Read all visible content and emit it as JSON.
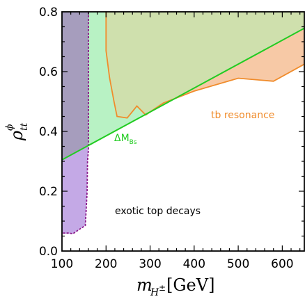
{
  "chart_data": {
    "type": "area",
    "title": "",
    "xlabel": "m_{H^±}[GeV]",
    "ylabel": "ρ^φ_{tt}",
    "xlim": [
      100,
      650
    ],
    "ylim": [
      0.0,
      0.8
    ],
    "x_ticks": [
      "100",
      "200",
      "300",
      "400",
      "500",
      "600"
    ],
    "y_ticks": [
      "0.0",
      "0.2",
      "0.4",
      "0.6",
      "0.8"
    ],
    "grid": false,
    "legend": "none",
    "regions": [
      {
        "name": "tb resonance",
        "color": "#f08c2c",
        "fill": "#f7c9a6",
        "boundary": [
          {
            "x": 200,
            "y": 0.8
          },
          {
            "x": 200,
            "y": 0.67
          },
          {
            "x": 208,
            "y": 0.58
          },
          {
            "x": 218,
            "y": 0.5
          },
          {
            "x": 225,
            "y": 0.45
          },
          {
            "x": 248,
            "y": 0.445
          },
          {
            "x": 270,
            "y": 0.485
          },
          {
            "x": 290,
            "y": 0.455
          },
          {
            "x": 330,
            "y": 0.495
          },
          {
            "x": 400,
            "y": 0.535
          },
          {
            "x": 500,
            "y": 0.578
          },
          {
            "x": 580,
            "y": 0.568
          },
          {
            "x": 650,
            "y": 0.625
          }
        ]
      },
      {
        "name": "exotic top decays",
        "color": "#8b1a8b",
        "fill": "#e3c5ea",
        "boundary": [
          {
            "x": 160,
            "y": 0.8
          },
          {
            "x": 160,
            "y": 0.34
          },
          {
            "x": 158,
            "y": 0.3
          },
          {
            "x": 157,
            "y": 0.2
          },
          {
            "x": 155,
            "y": 0.14
          },
          {
            "x": 153,
            "y": 0.085
          },
          {
            "x": 140,
            "y": 0.073
          },
          {
            "x": 125,
            "y": 0.058
          },
          {
            "x": 115,
            "y": 0.06
          },
          {
            "x": 100,
            "y": 0.06
          }
        ]
      },
      {
        "name": "ΔM_Bs",
        "color": "#22cc22",
        "fill": "#b8f2c4",
        "line": [
          {
            "x": 100,
            "y": 0.305
          },
          {
            "x": 650,
            "y": 0.745
          }
        ]
      }
    ],
    "annotations": [
      {
        "text": "tb resonance",
        "color": "#f08c2c"
      },
      {
        "text": "ΔM",
        "sub": "Bs",
        "color": "#22cc22"
      },
      {
        "text": "exotic top decays",
        "color": "#000000"
      }
    ]
  }
}
